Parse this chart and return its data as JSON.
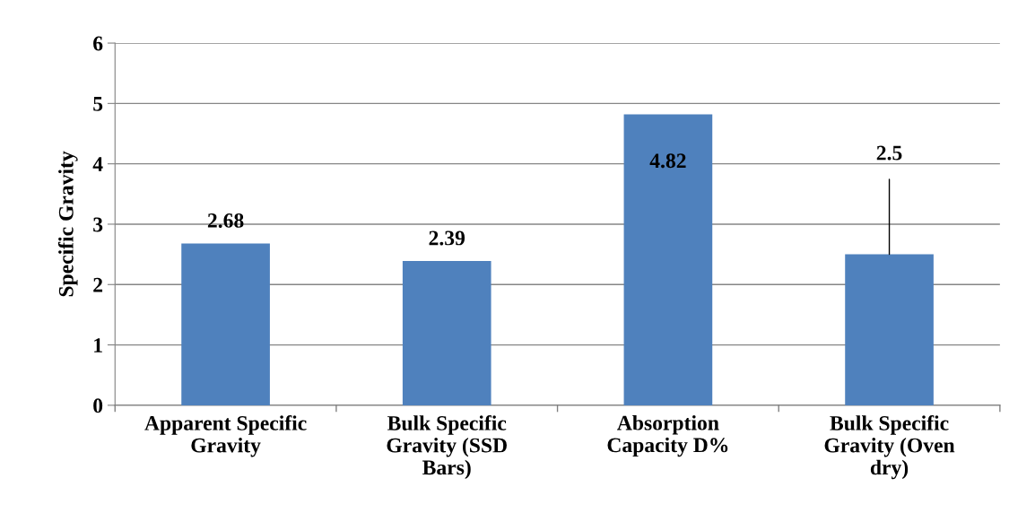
{
  "chart_data": {
    "type": "bar",
    "ylabel": "Specific Gravity",
    "categories": [
      "Apparent Specific\nGravity",
      "Bulk Specific\nGravity (SSD\nBars)",
      "Absorption\nCapacity D%",
      "Bulk Specific\nGravity (Oven\ndry)"
    ],
    "values": [
      2.68,
      2.39,
      4.82,
      2.5
    ],
    "color": "#4f81bd",
    "value_labels": [
      "2.68",
      "2.39",
      "4.82",
      null
    ],
    "annotations": [
      {
        "text": "2.5",
        "x": "Bulk Specific\nGravity (Oven\ndry)",
        "y": 2.5
      }
    ],
    "ylim": [
      0,
      6
    ],
    "yticks": [
      0,
      1,
      2,
      3,
      4,
      5,
      6
    ],
    "grid": "y"
  }
}
